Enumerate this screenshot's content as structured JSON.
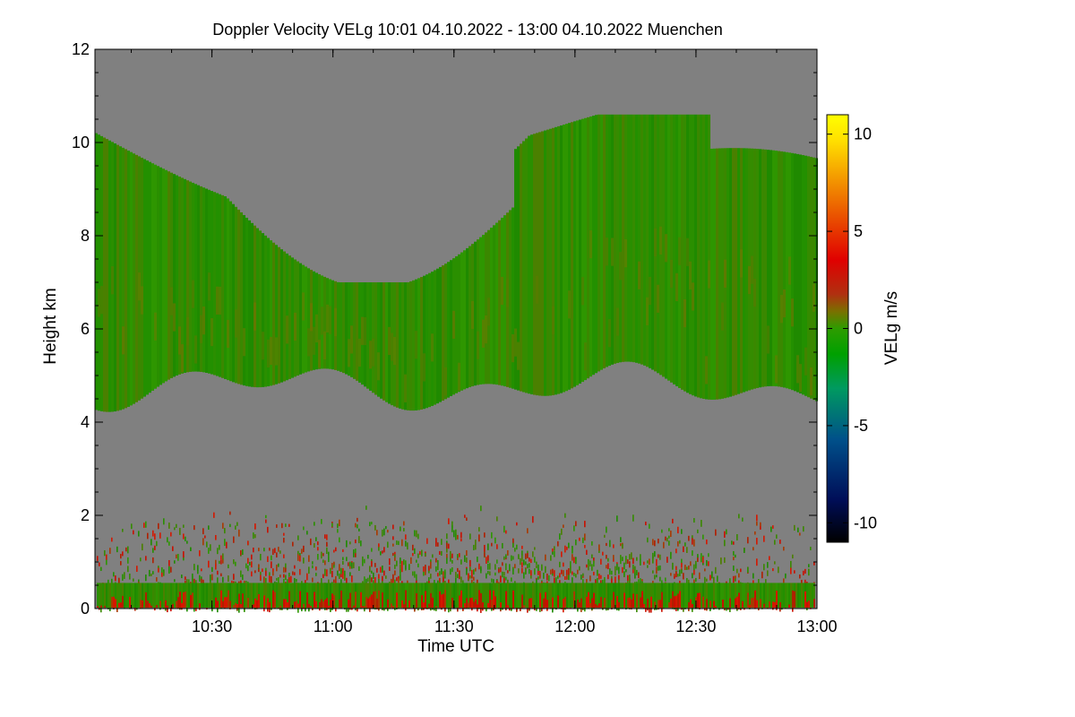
{
  "chart_data": {
    "type": "heatmap",
    "title": "Doppler Velocity VELg   10:01 04.10.2022 - 13:00 04.10.2022 Muenchen",
    "xlabel": "Time UTC",
    "ylabel": "Height km",
    "xlim": [
      "10:01",
      "13:00"
    ],
    "ylim": [
      0,
      12
    ],
    "x_ticks": [
      "10:30",
      "11:00",
      "11:30",
      "12:00",
      "12:30",
      "13:00"
    ],
    "y_ticks": [
      0,
      2,
      4,
      6,
      8,
      10,
      12
    ],
    "colorbar": {
      "label": "VELg m/s",
      "range": [
        -11,
        11
      ],
      "ticks": [
        -10,
        -5,
        0,
        5,
        10
      ]
    },
    "background_color": "#808080",
    "colormap": [
      "#000000",
      "#000e58",
      "#00508a",
      "#009a60",
      "#00a000",
      "#2e9c00",
      "#7a7000",
      "#b03010",
      "#e00000",
      "#f08000",
      "#ffe000",
      "#ffff00"
    ],
    "cloud_layer": {
      "base_km_min": 4.2,
      "base_km_max": 5.3,
      "top_km_min": 7.0,
      "top_km_max": 10.6,
      "dominant_velocity_m_s": -1
    },
    "boundary_layer": {
      "top_km": 2.2,
      "near_surface_velocity_m_s": [
        -1,
        2
      ]
    }
  }
}
